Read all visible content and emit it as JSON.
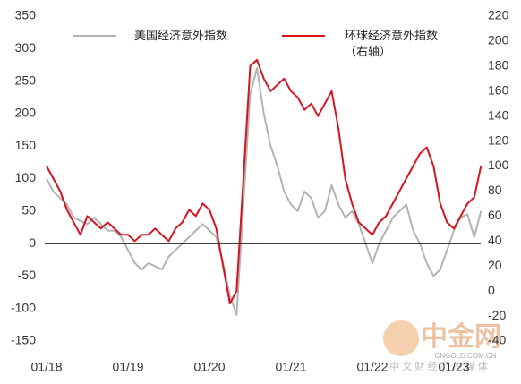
{
  "chart_data": {
    "type": "line",
    "x": [
      "2018-01",
      "2018-02",
      "2018-03",
      "2018-04",
      "2018-05",
      "2018-06",
      "2018-07",
      "2018-08",
      "2018-09",
      "2018-10",
      "2018-11",
      "2018-12",
      "2019-01",
      "2019-02",
      "2019-03",
      "2019-04",
      "2019-05",
      "2019-06",
      "2019-07",
      "2019-08",
      "2019-09",
      "2019-10",
      "2019-11",
      "2019-12",
      "2020-01",
      "2020-02",
      "2020-03",
      "2020-04",
      "2020-05",
      "2020-06",
      "2020-07",
      "2020-08",
      "2020-09",
      "2020-10",
      "2020-11",
      "2020-12",
      "2021-01",
      "2021-02",
      "2021-03",
      "2021-04",
      "2021-05",
      "2021-06",
      "2021-07",
      "2021-08",
      "2021-09",
      "2021-10",
      "2021-11",
      "2021-12",
      "2022-01",
      "2022-02",
      "2022-03",
      "2022-04",
      "2022-05",
      "2022-06",
      "2022-07",
      "2022-08",
      "2022-09",
      "2022-10",
      "2022-11",
      "2022-12",
      "2023-01",
      "2023-02",
      "2023-03",
      "2023-04",
      "2023-05"
    ],
    "series": [
      {
        "name": "美国经济意外指数",
        "color": "#b3b3b3",
        "axis": "y",
        "values": [
          100,
          80,
          70,
          60,
          40,
          35,
          30,
          40,
          30,
          20,
          20,
          10,
          -10,
          -30,
          -40,
          -30,
          -35,
          -40,
          -20,
          -10,
          0,
          10,
          20,
          30,
          20,
          10,
          -30,
          -80,
          -110,
          60,
          230,
          270,
          200,
          150,
          120,
          80,
          60,
          50,
          80,
          70,
          40,
          50,
          90,
          60,
          40,
          50,
          30,
          0,
          -30,
          0,
          20,
          40,
          50,
          60,
          20,
          0,
          -30,
          -50,
          -40,
          -10,
          20,
          40,
          45,
          10,
          50
        ]
      },
      {
        "name": "环球经济意外指数（右轴）",
        "color": "#d7141e",
        "axis": "y2",
        "values": [
          100,
          90,
          80,
          65,
          55,
          45,
          60,
          55,
          50,
          55,
          50,
          45,
          45,
          40,
          45,
          45,
          50,
          45,
          40,
          50,
          55,
          65,
          60,
          70,
          65,
          50,
          20,
          -10,
          0,
          90,
          180,
          185,
          170,
          160,
          165,
          170,
          160,
          155,
          145,
          150,
          140,
          150,
          160,
          130,
          90,
          70,
          55,
          50,
          45,
          55,
          60,
          70,
          80,
          90,
          100,
          110,
          115,
          100,
          70,
          55,
          50,
          60,
          70,
          75,
          100
        ]
      }
    ],
    "ylim": [
      -150,
      350
    ],
    "yticks": [
      -150,
      -100,
      -50,
      0,
      50,
      100,
      150,
      200,
      250,
      300,
      350
    ],
    "y2lim": [
      -40,
      220
    ],
    "y2ticks": [
      -40,
      -20,
      0,
      20,
      40,
      60,
      80,
      100,
      120,
      140,
      160,
      180,
      200,
      220
    ],
    "xticks": [
      {
        "value": "2018-01",
        "label": "01/18"
      },
      {
        "value": "2019-01",
        "label": "01/19"
      },
      {
        "value": "2020-01",
        "label": "01/20"
      },
      {
        "value": "2021-01",
        "label": "01/21"
      },
      {
        "value": "2022-01",
        "label": "01/22"
      },
      {
        "value": "2023-01",
        "label": "01/23"
      }
    ],
    "zero_line": true
  },
  "watermark": {
    "brand": "中金网",
    "url": "CNGOLD.COM.CN",
    "slogan": "中 文 财 经 门 户 媒 体"
  }
}
